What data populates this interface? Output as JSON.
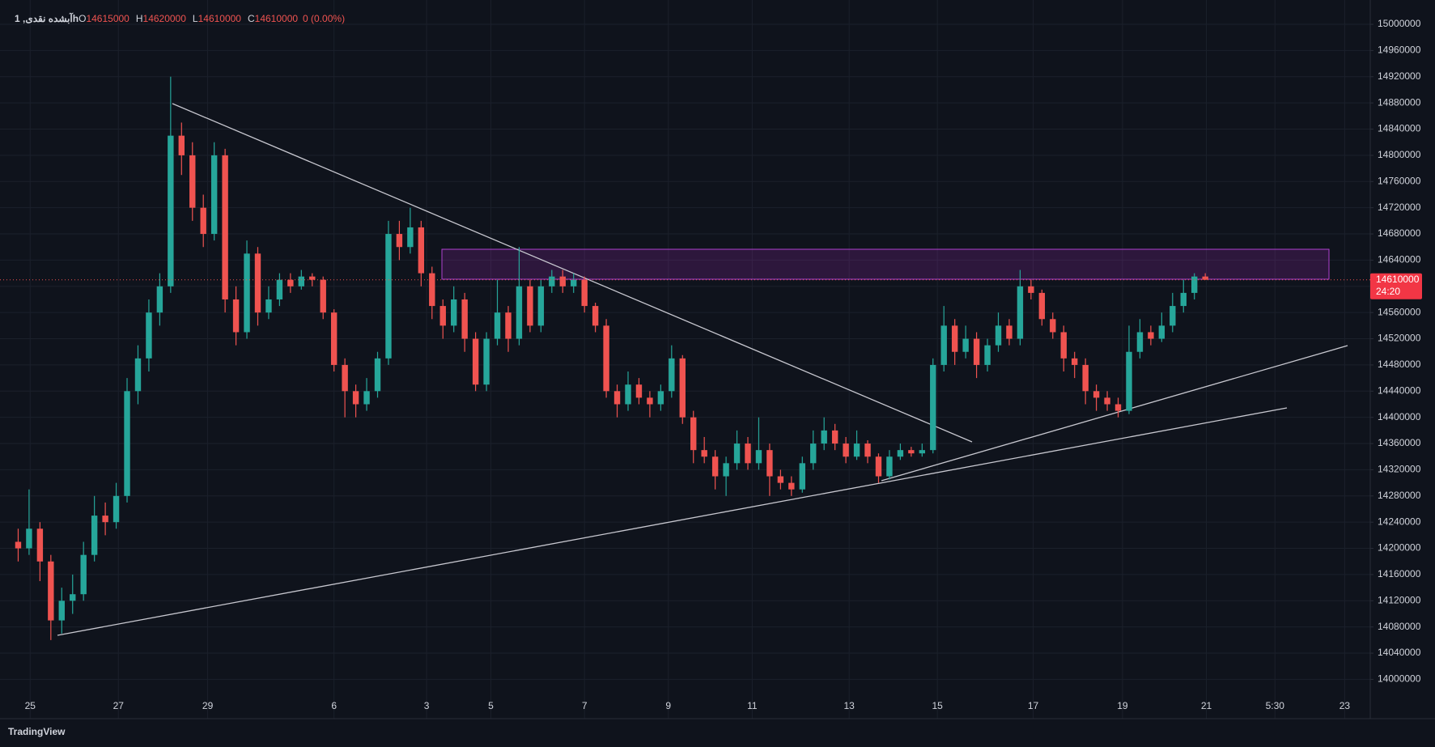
{
  "chart_data": {
    "type": "candlestick",
    "symbol": "آبشده نقدی, 1h",
    "header_labels": [
      "O",
      "H",
      "L",
      "C"
    ],
    "change": "0 (0.00%)",
    "countdown": "24:20",
    "brand": "TradingView",
    "up_color": "#26a69a",
    "down_color": "#ef5350",
    "grid": true,
    "xlim": [
      0,
      125
    ],
    "xticks": [
      {
        "value": 2.1,
        "label": "25"
      },
      {
        "value": 10.2,
        "label": "27"
      },
      {
        "value": 18.4,
        "label": "29"
      },
      {
        "value": 30,
        "label": "6"
      },
      {
        "value": 38.5,
        "label": "3"
      },
      {
        "value": 44.4,
        "label": "5"
      },
      {
        "value": 53,
        "label": "7"
      },
      {
        "value": 60.7,
        "label": "9"
      },
      {
        "value": 68.4,
        "label": "11"
      },
      {
        "value": 77.3,
        "label": "13"
      },
      {
        "value": 85.4,
        "label": "15"
      },
      {
        "value": 94.2,
        "label": "17"
      },
      {
        "value": 102.4,
        "label": "19"
      },
      {
        "value": 110.1,
        "label": "21"
      },
      {
        "value": 116.4,
        "label": "5:30"
      },
      {
        "value": 122.8,
        "label": "23"
      }
    ],
    "ylim": [
      13940000,
      15026000
    ],
    "yticks": [
      14000000,
      14040000,
      14080000,
      14120000,
      14160000,
      14200000,
      14240000,
      14280000,
      14320000,
      14360000,
      14400000,
      14440000,
      14480000,
      14520000,
      14560000,
      14600000,
      14640000,
      14680000,
      14720000,
      14760000,
      14800000,
      14840000,
      14880000,
      14920000,
      14960000,
      15000000
    ],
    "open": [
      14210000,
      14200000,
      14230000,
      14180000,
      14090000,
      14120000,
      14130000,
      14190000,
      14250000,
      14240000,
      14280000,
      14440000,
      14490000,
      14560000,
      14600000,
      14830000,
      14800000,
      14720000,
      14680000,
      14800000,
      14580000,
      14530000,
      14650000,
      14560000,
      14580000,
      14610000,
      14600000,
      14615000,
      14610000,
      14560000,
      14480000,
      14440000,
      14420000,
      14440000,
      14490000,
      14680000,
      14660000,
      14690000,
      14620000,
      14570000,
      14540000,
      14580000,
      14520000,
      14450000,
      14520000,
      14560000,
      14520000,
      14600000,
      14540000,
      14600000,
      14615000,
      14600000,
      14610000,
      14570000,
      14540000,
      14440000,
      14420000,
      14450000,
      14430000,
      14420000,
      14440000,
      14490000,
      14400000,
      14350000,
      14340000,
      14310000,
      14330000,
      14360000,
      14330000,
      14350000,
      14310000,
      14300000,
      14290000,
      14330000,
      14360000,
      14380000,
      14360000,
      14340000,
      14360000,
      14340000,
      14310000,
      14340000,
      14350000,
      14345000,
      14350000,
      14480000,
      14540000,
      14500000,
      14520000,
      14480000,
      14510000,
      14540000,
      14520000,
      14600000,
      14590000,
      14550000,
      14530000,
      14490000,
      14480000,
      14440000,
      14430000,
      14420000,
      14410000,
      14500000,
      14530000,
      14520000,
      14540000,
      14570000,
      14590000,
      14615000
    ],
    "high": [
      14230000,
      14290000,
      14240000,
      14190000,
      14140000,
      14160000,
      14210000,
      14280000,
      14270000,
      14300000,
      14460000,
      14510000,
      14580000,
      14620000,
      14920000,
      14850000,
      14820000,
      14740000,
      14820000,
      14810000,
      14600000,
      14670000,
      14660000,
      14600000,
      14620000,
      14620000,
      14625000,
      14620000,
      14615000,
      14565000,
      14490000,
      14450000,
      14460000,
      14500000,
      14700000,
      14700000,
      14720000,
      14700000,
      14630000,
      14580000,
      14600000,
      14590000,
      14530000,
      14530000,
      14610000,
      14570000,
      14660000,
      14610000,
      14610000,
      14625000,
      14625000,
      14620000,
      14615000,
      14575000,
      14550000,
      14450000,
      14470000,
      14460000,
      14440000,
      14450000,
      14510000,
      14495000,
      14410000,
      14370000,
      14350000,
      14340000,
      14380000,
      14370000,
      14400000,
      14360000,
      14320000,
      14310000,
      14340000,
      14380000,
      14400000,
      14390000,
      14370000,
      14380000,
      14365000,
      14345000,
      14350000,
      14360000,
      14355000,
      14360000,
      14490000,
      14570000,
      14550000,
      14540000,
      14530000,
      14520000,
      14560000,
      14550000,
      14625000,
      14610000,
      14595000,
      14560000,
      14540000,
      14500000,
      14490000,
      14450000,
      14440000,
      14430000,
      14540000,
      14550000,
      14540000,
      14560000,
      14590000,
      14610000,
      14620000,
      14620000
    ],
    "low": [
      14180000,
      14190000,
      14150000,
      14060000,
      14070000,
      14100000,
      14120000,
      14180000,
      14220000,
      14230000,
      14270000,
      14420000,
      14470000,
      14540000,
      14590000,
      14770000,
      14700000,
      14660000,
      14670000,
      14560000,
      14510000,
      14520000,
      14540000,
      14550000,
      14570000,
      14590000,
      14595000,
      14600000,
      14550000,
      14470000,
      14400000,
      14400000,
      14410000,
      14430000,
      14480000,
      14640000,
      14650000,
      14600000,
      14550000,
      14520000,
      14530000,
      14500000,
      14440000,
      14440000,
      14510000,
      14500000,
      14510000,
      14530000,
      14530000,
      14590000,
      14590000,
      14590000,
      14560000,
      14530000,
      14430000,
      14400000,
      14410000,
      14420000,
      14400000,
      14410000,
      14430000,
      14390000,
      14330000,
      14330000,
      14290000,
      14280000,
      14320000,
      14320000,
      14320000,
      14280000,
      14290000,
      14280000,
      14285000,
      14320000,
      14350000,
      14350000,
      14330000,
      14335000,
      14330000,
      14300000,
      14305000,
      14335000,
      14340000,
      14340000,
      14345000,
      14470000,
      14480000,
      14490000,
      14460000,
      14470000,
      14500000,
      14510000,
      14510000,
      14580000,
      14540000,
      14520000,
      14470000,
      14460000,
      14420000,
      14410000,
      14410000,
      14400000,
      14405000,
      14490000,
      14510000,
      14515000,
      14530000,
      14560000,
      14580000,
      14610000
    ],
    "close": [
      14200000,
      14230000,
      14180000,
      14090000,
      14120000,
      14130000,
      14190000,
      14250000,
      14240000,
      14280000,
      14440000,
      14490000,
      14560000,
      14600000,
      14830000,
      14800000,
      14720000,
      14680000,
      14800000,
      14580000,
      14530000,
      14650000,
      14560000,
      14580000,
      14610000,
      14600000,
      14615000,
      14610000,
      14560000,
      14480000,
      14440000,
      14420000,
      14440000,
      14490000,
      14680000,
      14660000,
      14690000,
      14620000,
      14570000,
      14540000,
      14580000,
      14520000,
      14450000,
      14520000,
      14560000,
      14520000,
      14600000,
      14540000,
      14600000,
      14615000,
      14600000,
      14610000,
      14570000,
      14540000,
      14440000,
      14420000,
      14450000,
      14430000,
      14420000,
      14440000,
      14490000,
      14400000,
      14350000,
      14340000,
      14310000,
      14330000,
      14360000,
      14330000,
      14350000,
      14310000,
      14300000,
      14290000,
      14330000,
      14360000,
      14380000,
      14360000,
      14340000,
      14360000,
      14340000,
      14310000,
      14340000,
      14350000,
      14345000,
      14350000,
      14480000,
      14540000,
      14500000,
      14520000,
      14480000,
      14510000,
      14540000,
      14520000,
      14600000,
      14590000,
      14550000,
      14530000,
      14490000,
      14480000,
      14440000,
      14430000,
      14420000,
      14410000,
      14500000,
      14530000,
      14520000,
      14540000,
      14570000,
      14590000,
      14615000,
      14610000
    ]
  }
}
